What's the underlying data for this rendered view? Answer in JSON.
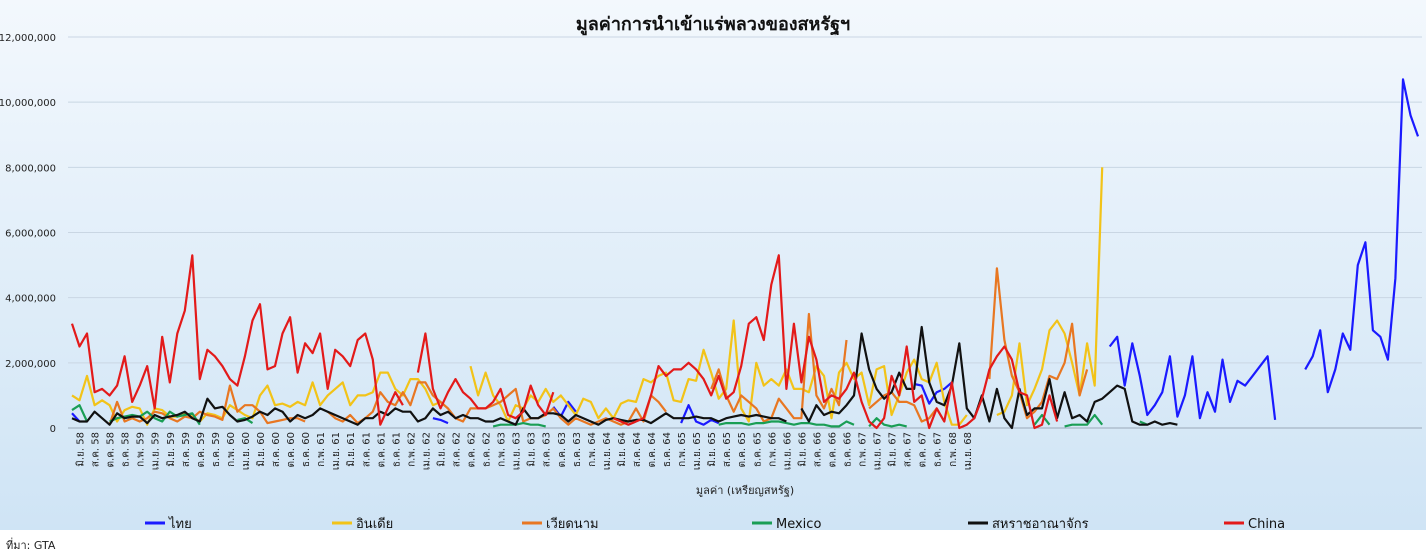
{
  "chart_data": {
    "type": "line",
    "title": "มูลค่าการนำเข้าแร่พลวงของสหรัฐฯ",
    "xlabel": "มูลค่า (เหรียญสหรัฐ)",
    "ylabel": "",
    "ylim": [
      0,
      12000000
    ],
    "yticks": [
      "0",
      "2,000,000",
      "4,000,000",
      "6,000,000",
      "8,000,000",
      "10,000,000",
      "12,000,000"
    ],
    "grid": true,
    "legend": "bottom",
    "x_start_month": 1,
    "x_tick_labels": [
      "มิ.ย. 58",
      "ส.ค. 58",
      "ต.ค. 58",
      "ธ.ค. 58",
      "ก.พ. 59",
      "เม.ย. 59",
      "มิ.ย. 59",
      "ส.ค. 59",
      "ต.ค. 59",
      "ธ.ค. 59",
      "ก.พ. 60",
      "เม.ย. 60",
      "มิ.ย. 60",
      "ส.ค. 60",
      "ต.ค. 60",
      "ธ.ค. 60",
      "ก.พ. 61",
      "เม.ย. 61",
      "มิ.ย. 61",
      "ส.ค. 61",
      "ต.ค. 61",
      "ธ.ค. 61",
      "ก.พ. 62",
      "เม.ย. 62",
      "มิ.ย. 62",
      "ส.ค. 62",
      "ต.ค. 62",
      "ธ.ค. 62",
      "ก.พ. 63",
      "เม.ย. 63",
      "มิ.ย. 63",
      "ส.ค. 63",
      "ต.ค. 63",
      "ธ.ค. 63",
      "ก.พ. 64",
      "เม.ย. 64",
      "มิ.ย. 64",
      "ส.ค. 64",
      "ต.ค. 64",
      "ธ.ค. 64",
      "ก.พ. 65",
      "เม.ย. 65",
      "มิ.ย. 65",
      "ส.ค. 65",
      "ต.ค. 65",
      "ธ.ค. 65",
      "ก.พ. 66",
      "เม.ย. 66",
      "มิ.ย. 66",
      "ส.ค. 66",
      "ต.ค. 66",
      "ธ.ค. 66",
      "ก.พ. 67",
      "เม.ย. 67",
      "มิ.ย. 67",
      "ส.ค. 67",
      "ต.ค. 67",
      "ธ.ค. 67",
      "ก.พ. 68",
      "เม.ย. 68"
    ],
    "series": [
      {
        "name": "ไทย",
        "color": "#1a1aff",
        "values": [
          450000,
          200000,
          null,
          null,
          null,
          null,
          null,
          null,
          null,
          null,
          null,
          null,
          null,
          null,
          null,
          null,
          null,
          null,
          null,
          null,
          null,
          null,
          null,
          null,
          null,
          null,
          null,
          null,
          null,
          null,
          null,
          null,
          null,
          null,
          null,
          null,
          null,
          null,
          null,
          null,
          null,
          null,
          null,
          null,
          null,
          null,
          null,
          null,
          300000,
          250000,
          150000,
          null,
          null,
          null,
          null,
          null,
          null,
          null,
          null,
          null,
          null,
          null,
          null,
          null,
          650000,
          350000,
          800000,
          500000,
          null,
          null,
          null,
          null,
          null,
          null,
          null,
          null,
          null,
          null,
          null,
          null,
          null,
          150000,
          700000,
          200000,
          100000,
          250000,
          150000,
          null,
          null,
          null,
          null,
          null,
          null,
          null,
          null,
          null,
          null,
          null,
          null,
          null,
          null,
          null,
          null,
          null,
          null,
          null,
          null,
          null,
          null,
          null,
          null,
          null,
          1350000,
          1300000,
          750000,
          1100000,
          1200000,
          1400000,
          null,
          null,
          null,
          null,
          null,
          null,
          null,
          null,
          null,
          null,
          null,
          null,
          null,
          null,
          null,
          null,
          null,
          null,
          null,
          null,
          2500000,
          2800000,
          1300000,
          2600000,
          1600000,
          400000,
          700000,
          1100000,
          2200000,
          350000,
          1000000,
          2200000,
          300000,
          1100000,
          500000,
          2100000,
          800000,
          1450000,
          1300000,
          1600000,
          1900000,
          2200000,
          250000,
          null,
          null,
          null,
          1800000,
          2200000,
          3000000,
          1100000,
          1800000,
          2900000,
          2400000,
          5000000,
          5700000,
          3000000,
          2800000,
          2100000,
          4600000,
          10700000,
          9600000,
          8950000
        ]
      },
      {
        "name": "อินเดีย",
        "color": "#f2c318",
        "values": [
          1000000,
          850000,
          1600000,
          700000,
          850000,
          700000,
          200000,
          550000,
          650000,
          600000,
          100000,
          600000,
          550000,
          350000,
          350000,
          450000,
          350000,
          200000,
          450000,
          400000,
          300000,
          700000,
          550000,
          400000,
          300000,
          1000000,
          1300000,
          700000,
          750000,
          650000,
          800000,
          700000,
          1400000,
          700000,
          1000000,
          1200000,
          1400000,
          700000,
          1000000,
          1000000,
          1100000,
          1700000,
          1700000,
          1200000,
          1000000,
          1500000,
          1500000,
          1200000,
          700000,
          800000,
          600000,
          null,
          null,
          1900000,
          1000000,
          1700000,
          1000000,
          700000,
          200000,
          700000,
          600000,
          1000000,
          800000,
          1200000,
          800000,
          1000000,
          700000,
          400000,
          900000,
          800000,
          300000,
          600000,
          300000,
          750000,
          850000,
          800000,
          1500000,
          1400000,
          1600000,
          1700000,
          850000,
          800000,
          1500000,
          1450000,
          2400000,
          1700000,
          900000,
          1200000,
          3300000,
          600000,
          200000,
          2000000,
          1300000,
          1500000,
          1300000,
          1800000,
          1200000,
          1200000,
          1100000,
          1900000,
          1600000,
          300000,
          1700000,
          2000000,
          1500000,
          1700000,
          700000,
          1800000,
          1900000,
          400000,
          1000000,
          1700000,
          2100000,
          1500000,
          1400000,
          2000000,
          800000,
          100000,
          100000,
          400000,
          null,
          null,
          null,
          400000,
          500000,
          1000000,
          2600000,
          700000,
          1200000,
          1800000,
          3000000,
          3300000,
          2900000,
          2000000,
          1000000,
          2600000,
          1300000,
          8000000
        ]
      },
      {
        "name": "เวียดนาม",
        "color": "#e87722",
        "values": [
          null,
          null,
          100000,
          null,
          null,
          100000,
          800000,
          200000,
          300000,
          200000,
          300000,
          500000,
          450000,
          300000,
          200000,
          350000,
          300000,
          500000,
          400000,
          350000,
          250000,
          1300000,
          500000,
          700000,
          700000,
          500000,
          150000,
          200000,
          250000,
          300000,
          300000,
          200000,
          null,
          null,
          500000,
          300000,
          200000,
          400000,
          150000,
          300000,
          500000,
          1100000,
          800000,
          700000,
          1100000,
          700000,
          1400000,
          1400000,
          1000000,
          800000,
          600000,
          300000,
          200000,
          600000,
          600000,
          600000,
          700000,
          800000,
          1000000,
          1200000,
          200000,
          300000,
          300000,
          400000,
          600000,
          300000,
          100000,
          300000,
          200000,
          100000,
          200000,
          300000,
          200000,
          100000,
          200000,
          600000,
          200000,
          1000000,
          800000,
          500000,
          null,
          null,
          null,
          null,
          null,
          1200000,
          1800000,
          1000000,
          500000,
          1000000,
          800000,
          600000,
          200000,
          300000,
          900000,
          600000,
          300000,
          300000,
          3500000,
          1000000,
          600000,
          1200000,
          700000,
          2700000,
          null,
          null,
          600000,
          800000,
          1000000,
          1100000,
          800000,
          800000,
          700000,
          200000,
          300000,
          600000,
          200000,
          null,
          null,
          null,
          null,
          null,
          1500000,
          4900000,
          2700000,
          1600000,
          1100000,
          300000,
          500000,
          800000,
          1600000,
          1500000,
          2000000,
          3200000,
          1000000,
          1800000
        ]
      },
      {
        "name": "Mexico",
        "color": "#1a9e55",
        "values": [
          550000,
          700000,
          200000,
          null,
          null,
          200000,
          300000,
          350000,
          400000,
          350000,
          500000,
          300000,
          200000,
          500000,
          350000,
          400000,
          450000,
          100000,
          null,
          null,
          null,
          null,
          250000,
          300000,
          150000,
          null,
          null,
          null,
          null,
          null,
          null,
          null,
          null,
          null,
          null,
          null,
          null,
          null,
          null,
          null,
          null,
          null,
          null,
          null,
          null,
          null,
          null,
          null,
          null,
          null,
          null,
          null,
          null,
          null,
          null,
          null,
          50000,
          100000,
          100000,
          100000,
          150000,
          100000,
          100000,
          50000,
          null,
          null,
          null,
          null,
          null,
          null,
          null,
          null,
          null,
          null,
          null,
          null,
          null,
          null,
          null,
          null,
          null,
          null,
          null,
          null,
          null,
          null,
          100000,
          150000,
          150000,
          150000,
          100000,
          150000,
          150000,
          200000,
          200000,
          150000,
          100000,
          150000,
          150000,
          100000,
          100000,
          50000,
          50000,
          200000,
          100000,
          null,
          50000,
          300000,
          100000,
          50000,
          100000,
          50000,
          null,
          null,
          null,
          null,
          null,
          null,
          null,
          null,
          null,
          null,
          null,
          null,
          null,
          null,
          null,
          null,
          100000,
          400000,
          100000,
          null,
          50000,
          100000,
          100000,
          100000,
          400000,
          100000,
          null,
          null,
          null,
          null,
          200000,
          100000
        ]
      },
      {
        "name": "สหราชอาณาจักร",
        "color": "#111111",
        "values": [
          300000,
          200000,
          200000,
          500000,
          300000,
          100000,
          450000,
          300000,
          350000,
          350000,
          150000,
          400000,
          300000,
          350000,
          400000,
          500000,
          300000,
          200000,
          900000,
          600000,
          650000,
          400000,
          200000,
          250000,
          350000,
          500000,
          400000,
          600000,
          500000,
          200000,
          400000,
          300000,
          400000,
          600000,
          500000,
          400000,
          300000,
          200000,
          100000,
          300000,
          300000,
          500000,
          400000,
          600000,
          500000,
          500000,
          200000,
          300000,
          600000,
          400000,
          500000,
          300000,
          400000,
          300000,
          300000,
          200000,
          200000,
          300000,
          200000,
          100000,
          600000,
          300000,
          300000,
          450000,
          450000,
          400000,
          200000,
          400000,
          300000,
          200000,
          100000,
          250000,
          300000,
          250000,
          200000,
          250000,
          250000,
          150000,
          300000,
          450000,
          300000,
          300000,
          300000,
          350000,
          300000,
          300000,
          200000,
          300000,
          350000,
          400000,
          350000,
          400000,
          350000,
          300000,
          300000,
          200000,
          null,
          600000,
          200000,
          700000,
          400000,
          500000,
          450000,
          700000,
          1000000,
          2900000,
          1800000,
          1200000,
          900000,
          1100000,
          1700000,
          1200000,
          1200000,
          3100000,
          1400000,
          800000,
          700000,
          1300000,
          2600000,
          600000,
          300000,
          1000000,
          200000,
          1200000,
          300000,
          0,
          1200000,
          400000,
          600000,
          600000,
          1500000,
          300000,
          1100000,
          300000,
          400000,
          200000,
          800000,
          900000,
          1100000,
          1300000,
          1200000,
          200000,
          100000,
          100000,
          200000,
          100000,
          150000,
          100000
        ]
      },
      {
        "name": "China",
        "color": "#e31a1a",
        "values": [
          3200000,
          2500000,
          2900000,
          1100000,
          1200000,
          1000000,
          1300000,
          2200000,
          800000,
          1300000,
          1900000,
          600000,
          2800000,
          1400000,
          2900000,
          3600000,
          5300000,
          1500000,
          2400000,
          2200000,
          1900000,
          1500000,
          1300000,
          2200000,
          3300000,
          3800000,
          1800000,
          1900000,
          2900000,
          3400000,
          1700000,
          2600000,
          2300000,
          2900000,
          1200000,
          2400000,
          2200000,
          1900000,
          2700000,
          2900000,
          2100000,
          100000,
          600000,
          1100000,
          700000,
          null,
          1700000,
          2900000,
          1200000,
          600000,
          1100000,
          1500000,
          1100000,
          900000,
          600000,
          600000,
          800000,
          1200000,
          400000,
          300000,
          500000,
          1300000,
          700000,
          400000,
          1100000,
          null,
          null,
          null,
          null,
          null,
          null,
          null,
          300000,
          200000,
          100000,
          200000,
          300000,
          1000000,
          1900000,
          1600000,
          1800000,
          1800000,
          2000000,
          1800000,
          1500000,
          1000000,
          1600000,
          900000,
          1100000,
          1900000,
          3200000,
          3400000,
          2700000,
          4400000,
          5300000,
          1200000,
          3200000,
          1400000,
          2800000,
          2100000,
          800000,
          1000000,
          900000,
          1200000,
          1700000,
          800000,
          200000,
          0,
          300000,
          1600000,
          1000000,
          2500000,
          800000,
          1000000,
          0,
          600000,
          200000,
          1400000,
          0,
          100000,
          300000,
          900000,
          1800000,
          2200000,
          2500000,
          2100000,
          1100000,
          1000000,
          0,
          100000,
          1000000,
          200000
        ]
      }
    ]
  },
  "source_note": "ที่มา: GTA"
}
